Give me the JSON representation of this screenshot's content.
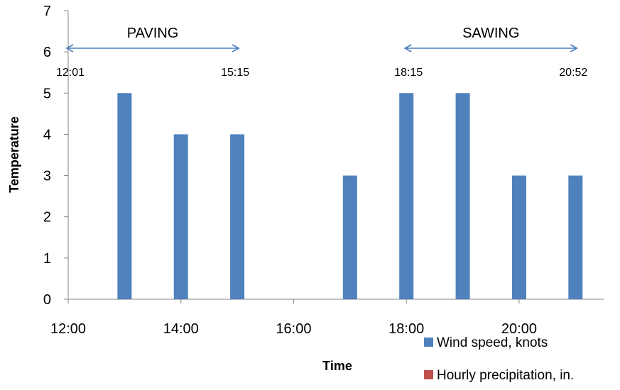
{
  "chart_data": {
    "type": "bar",
    "xlabel": "Time",
    "ylabel": "Temperature",
    "ylim": [
      0,
      7
    ],
    "yticks": [
      "0",
      "1",
      "2",
      "3",
      "4",
      "5",
      "6",
      "7"
    ],
    "xlim": [
      12,
      21.5
    ],
    "xticks": [
      {
        "x": 12,
        "label": "12:00"
      },
      {
        "x": 14,
        "label": "14:00"
      },
      {
        "x": 16,
        "label": "16:00"
      },
      {
        "x": 18,
        "label": "18:00"
      },
      {
        "x": 20,
        "label": "20:00"
      }
    ],
    "series": [
      {
        "name": "Wind speed, knots",
        "color": "#4f81bd",
        "points": [
          {
            "x": 13,
            "y": 5
          },
          {
            "x": 14,
            "y": 4
          },
          {
            "x": 15,
            "y": 4
          },
          {
            "x": 17,
            "y": 3
          },
          {
            "x": 18,
            "y": 5
          },
          {
            "x": 19,
            "y": 5
          },
          {
            "x": 20,
            "y": 3
          },
          {
            "x": 21,
            "y": 3
          }
        ]
      },
      {
        "name": "Hourly precipitation, in.",
        "color": "#c0504d",
        "points": []
      }
    ],
    "annotations": [
      {
        "label": "PAVING",
        "start_time": "12:01",
        "end_time": "15:15",
        "start_x": 12.0,
        "end_x": 15.0
      },
      {
        "label": "SAWING",
        "start_time": "18:15",
        "end_time": "20:52",
        "start_x": 18.0,
        "end_x": 21.0
      }
    ],
    "legend_position": "bottom-right",
    "grid": false,
    "arrow_color": "#4a7ebb"
  }
}
